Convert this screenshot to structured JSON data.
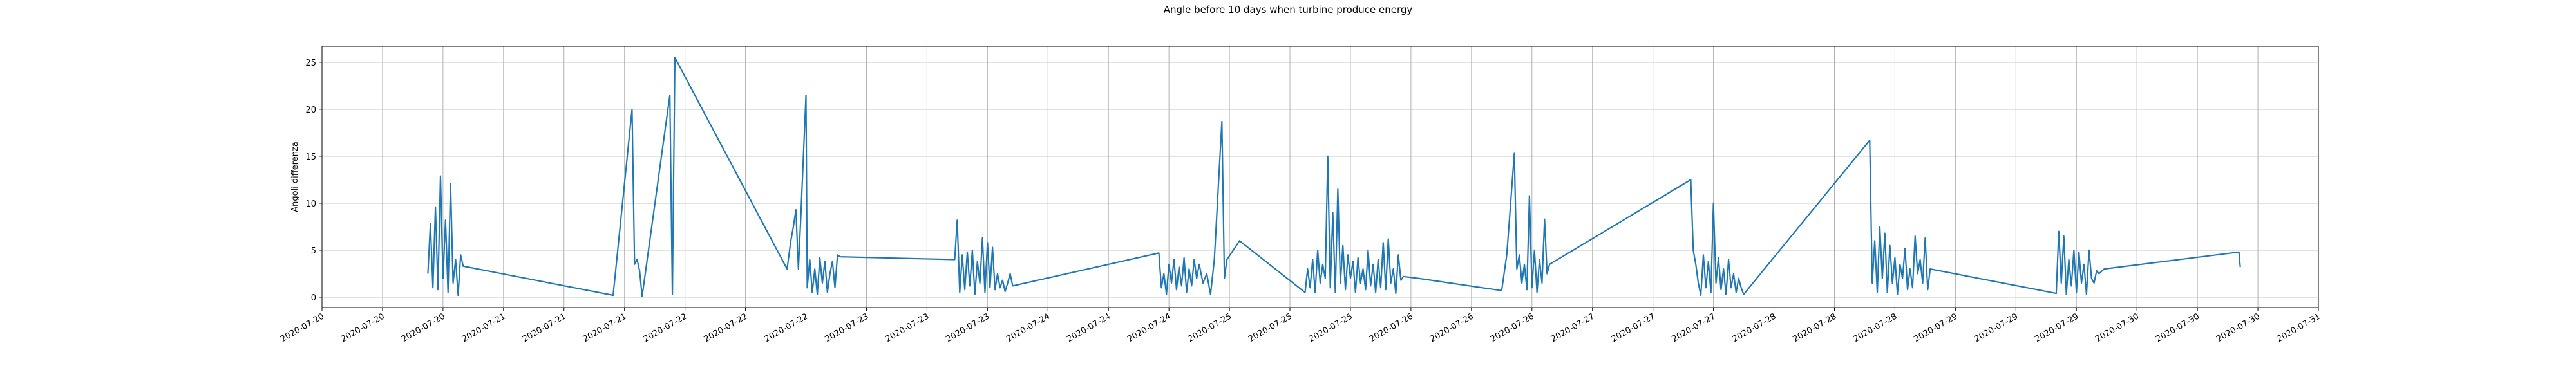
{
  "chart_data": {
    "type": "line",
    "title": "Angle before 10 days when turbine produce energy",
    "y_label": "Angoli differenza",
    "color": "#1f77b4",
    "grid": true,
    "x": [
      "2020-07-20 14:00",
      "2020-07-20 14:20",
      "2020-07-20 14:40",
      "2020-07-20 15:00",
      "2020-07-20 15:20",
      "2020-07-20 15:40",
      "2020-07-20 16:00",
      "2020-07-20 16:20",
      "2020-07-20 16:40",
      "2020-07-20 17:00",
      "2020-07-20 17:20",
      "2020-07-20 17:40",
      "2020-07-20 18:00",
      "2020-07-20 18:20",
      "2020-07-20 18:40",
      "2020-07-21 14:30",
      "2020-07-21 17:00",
      "2020-07-21 17:20",
      "2020-07-21 17:40",
      "2020-07-21 18:00",
      "2020-07-21 18:20",
      "2020-07-21 22:00",
      "2020-07-21 22:20",
      "2020-07-21 22:40",
      "2020-07-22 13:30",
      "2020-07-22 14:00",
      "2020-07-22 14:20",
      "2020-07-22 14:40",
      "2020-07-22 15:00",
      "2020-07-22 15:20",
      "2020-07-22 16:00",
      "2020-07-22 16:10",
      "2020-07-22 16:30",
      "2020-07-22 16:50",
      "2020-07-22 17:10",
      "2020-07-22 17:30",
      "2020-07-22 17:50",
      "2020-07-22 18:10",
      "2020-07-22 18:30",
      "2020-07-22 18:50",
      "2020-07-22 19:10",
      "2020-07-22 19:30",
      "2020-07-22 19:50",
      "2020-07-22 20:10",
      "2020-07-22 20:30",
      "2020-07-23 11:40",
      "2020-07-23 12:00",
      "2020-07-23 12:20",
      "2020-07-23 12:40",
      "2020-07-23 13:00",
      "2020-07-23 13:20",
      "2020-07-23 13:40",
      "2020-07-23 14:00",
      "2020-07-23 14:20",
      "2020-07-23 14:40",
      "2020-07-23 15:00",
      "2020-07-23 15:20",
      "2020-07-23 15:40",
      "2020-07-23 16:00",
      "2020-07-23 16:20",
      "2020-07-23 16:40",
      "2020-07-23 17:00",
      "2020-07-23 17:20",
      "2020-07-23 17:40",
      "2020-07-23 18:00",
      "2020-07-23 18:20",
      "2020-07-23 18:40",
      "2020-07-23 19:00",
      "2020-07-23 19:20",
      "2020-07-24 14:40",
      "2020-07-24 15:00",
      "2020-07-24 15:20",
      "2020-07-24 15:40",
      "2020-07-24 16:00",
      "2020-07-24 16:20",
      "2020-07-24 16:40",
      "2020-07-24 17:00",
      "2020-07-24 17:20",
      "2020-07-24 17:40",
      "2020-07-24 18:00",
      "2020-07-24 18:20",
      "2020-07-24 18:40",
      "2020-07-24 19:00",
      "2020-07-24 19:20",
      "2020-07-24 19:40",
      "2020-07-24 20:00",
      "2020-07-24 20:30",
      "2020-07-24 21:00",
      "2020-07-24 21:30",
      "2020-07-24 22:00",
      "2020-07-24 23:00",
      "2020-07-24 23:20",
      "2020-07-24 23:40",
      "2020-07-25 01:20",
      "2020-07-25 10:00",
      "2020-07-25 10:20",
      "2020-07-25 10:40",
      "2020-07-25 11:00",
      "2020-07-25 11:20",
      "2020-07-25 11:40",
      "2020-07-25 12:00",
      "2020-07-25 12:20",
      "2020-07-25 12:40",
      "2020-07-25 13:00",
      "2020-07-25 13:20",
      "2020-07-25 13:40",
      "2020-07-25 14:00",
      "2020-07-25 14:20",
      "2020-07-25 14:40",
      "2020-07-25 15:00",
      "2020-07-25 15:20",
      "2020-07-25 15:40",
      "2020-07-25 16:00",
      "2020-07-25 16:20",
      "2020-07-25 16:40",
      "2020-07-25 17:00",
      "2020-07-25 17:20",
      "2020-07-25 17:40",
      "2020-07-25 18:00",
      "2020-07-25 18:20",
      "2020-07-25 18:40",
      "2020-07-25 19:00",
      "2020-07-25 19:20",
      "2020-07-25 19:40",
      "2020-07-25 20:00",
      "2020-07-25 20:20",
      "2020-07-25 20:40",
      "2020-07-25 21:00",
      "2020-07-25 21:20",
      "2020-07-25 21:40",
      "2020-07-25 22:00",
      "2020-07-25 22:20",
      "2020-07-25 22:40",
      "2020-07-25 23:00",
      "2020-07-26 01:00",
      "2020-07-26 12:00",
      "2020-07-26 12:40",
      "2020-07-26 13:00",
      "2020-07-26 13:40",
      "2020-07-26 14:00",
      "2020-07-26 14:20",
      "2020-07-26 14:40",
      "2020-07-26 15:00",
      "2020-07-26 15:20",
      "2020-07-26 15:40",
      "2020-07-26 16:00",
      "2020-07-26 16:20",
      "2020-07-26 16:40",
      "2020-07-26 17:00",
      "2020-07-26 17:20",
      "2020-07-26 17:40",
      "2020-07-26 18:00",
      "2020-07-26 18:20",
      "2020-07-27 13:00",
      "2020-07-27 13:20",
      "2020-07-27 13:40",
      "2020-07-27 14:00",
      "2020-07-27 14:20",
      "2020-07-27 14:40",
      "2020-07-27 15:00",
      "2020-07-27 15:20",
      "2020-07-27 15:40",
      "2020-07-27 16:00",
      "2020-07-27 16:20",
      "2020-07-27 16:40",
      "2020-07-27 17:00",
      "2020-07-27 17:20",
      "2020-07-27 17:40",
      "2020-07-27 18:00",
      "2020-07-27 18:20",
      "2020-07-27 18:40",
      "2020-07-27 19:00",
      "2020-07-27 19:20",
      "2020-07-27 19:40",
      "2020-07-27 20:00",
      "2020-07-28 12:40",
      "2020-07-28 13:00",
      "2020-07-28 13:20",
      "2020-07-28 13:40",
      "2020-07-28 14:00",
      "2020-07-28 14:20",
      "2020-07-28 14:40",
      "2020-07-28 15:00",
      "2020-07-28 15:20",
      "2020-07-28 15:40",
      "2020-07-28 16:00",
      "2020-07-28 16:20",
      "2020-07-28 16:40",
      "2020-07-28 17:00",
      "2020-07-28 17:20",
      "2020-07-28 17:40",
      "2020-07-28 18:00",
      "2020-07-28 18:20",
      "2020-07-28 18:40",
      "2020-07-28 19:00",
      "2020-07-28 19:20",
      "2020-07-28 19:40",
      "2020-07-28 20:00",
      "2020-07-28 20:20",
      "2020-07-28 20:40",
      "2020-07-29 13:20",
      "2020-07-29 13:40",
      "2020-07-29 14:00",
      "2020-07-29 14:20",
      "2020-07-29 14:40",
      "2020-07-29 15:00",
      "2020-07-29 15:20",
      "2020-07-29 15:40",
      "2020-07-29 16:00",
      "2020-07-29 16:20",
      "2020-07-29 16:40",
      "2020-07-29 17:00",
      "2020-07-29 17:20",
      "2020-07-29 17:40",
      "2020-07-29 18:00",
      "2020-07-29 18:20",
      "2020-07-29 18:40",
      "2020-07-29 19:00",
      "2020-07-29 19:40",
      "2020-07-30 13:30",
      "2020-07-30 13:40"
    ],
    "values": [
      2.5,
      7.8,
      1,
      9.6,
      0.8,
      12.9,
      2,
      8.2,
      0.5,
      12.1,
      1.5,
      4,
      0.2,
      4.5,
      3.3,
      0.2,
      20,
      3.5,
      4,
      2.8,
      0.1,
      21.5,
      0.3,
      25.5,
      3,
      6,
      7.5,
      9.3,
      3,
      8.8,
      21.5,
      1,
      4,
      0.5,
      3,
      0.3,
      4.2,
      1.5,
      3.8,
      0.5,
      2.5,
      3.8,
      1,
      4.5,
      4.3,
      4,
      8.2,
      0.5,
      4.5,
      0.8,
      4.8,
      1.2,
      5,
      0.3,
      3.8,
      1.5,
      6.3,
      0.5,
      5.8,
      1,
      5.3,
      0.8,
      2.5,
      1,
      1.8,
      0.6,
      1.5,
      2.5,
      1.2,
      4.7,
      1,
      2.5,
      0.3,
      3.5,
      1.5,
      4,
      0.8,
      3.2,
      1.2,
      4.2,
      0.5,
      3,
      1.2,
      4,
      2,
      3.5,
      1.5,
      2.5,
      0.3,
      4,
      18.7,
      2,
      4,
      6,
      0.5,
      3,
      1,
      4,
      0.5,
      5,
      1.5,
      3.5,
      2,
      15,
      1,
      9,
      0.5,
      11.5,
      1.5,
      5.5,
      0.8,
      4.5,
      2,
      3.8,
      0.5,
      4.2,
      1.5,
      3,
      0.8,
      5,
      1.2,
      3.5,
      0.5,
      4,
      1,
      5.8,
      0.8,
      6.2,
      1.5,
      3,
      0.4,
      4.5,
      1.8,
      2.2,
      2,
      0.7,
      4.5,
      8,
      15.3,
      3,
      4.5,
      1.5,
      3.5,
      0.8,
      10.8,
      1,
      5,
      0.5,
      4,
      1.5,
      8.3,
      2.5,
      3.5,
      12.5,
      5,
      3.5,
      1.5,
      0.2,
      4.5,
      1,
      3.8,
      0.5,
      10,
      1.5,
      4.2,
      0.8,
      3,
      0.3,
      4,
      1,
      2.5,
      0.5,
      2,
      1,
      0.3,
      16.7,
      1.5,
      6,
      0.5,
      7.5,
      2,
      6.8,
      0.5,
      5.5,
      1.5,
      4.2,
      0.3,
      3.5,
      2,
      5.2,
      0.8,
      3,
      1,
      6.5,
      2.5,
      4,
      1.5,
      6.3,
      0.8,
      3,
      0.4,
      7,
      1.5,
      6.5,
      0.3,
      4,
      1.2,
      5,
      0.5,
      4.8,
      1.5,
      3.5,
      0.3,
      5,
      2,
      1.5,
      2.8,
      2.5,
      3,
      4.8,
      3.2
    ],
    "xlim": [
      "2020-07-20 00:00",
      "2020-07-31 00:00"
    ],
    "xticks": [
      {
        "value": "2020-07-20 00:00",
        "label": "2020-07-20"
      },
      {
        "value": "2020-07-20 08:00",
        "label": "2020-07-20"
      },
      {
        "value": "2020-07-20 16:00",
        "label": "2020-07-20"
      },
      {
        "value": "2020-07-21 00:00",
        "label": "2020-07-21"
      },
      {
        "value": "2020-07-21 08:00",
        "label": "2020-07-21"
      },
      {
        "value": "2020-07-21 16:00",
        "label": "2020-07-21"
      },
      {
        "value": "2020-07-22 00:00",
        "label": "2020-07-22"
      },
      {
        "value": "2020-07-22 08:00",
        "label": "2020-07-22"
      },
      {
        "value": "2020-07-22 16:00",
        "label": "2020-07-22"
      },
      {
        "value": "2020-07-23 00:00",
        "label": "2020-07-23"
      },
      {
        "value": "2020-07-23 08:00",
        "label": "2020-07-23"
      },
      {
        "value": "2020-07-23 16:00",
        "label": "2020-07-23"
      },
      {
        "value": "2020-07-24 00:00",
        "label": "2020-07-24"
      },
      {
        "value": "2020-07-24 08:00",
        "label": "2020-07-24"
      },
      {
        "value": "2020-07-24 16:00",
        "label": "2020-07-24"
      },
      {
        "value": "2020-07-25 00:00",
        "label": "2020-07-25"
      },
      {
        "value": "2020-07-25 08:00",
        "label": "2020-07-25"
      },
      {
        "value": "2020-07-25 16:00",
        "label": "2020-07-25"
      },
      {
        "value": "2020-07-26 00:00",
        "label": "2020-07-26"
      },
      {
        "value": "2020-07-26 08:00",
        "label": "2020-07-26"
      },
      {
        "value": "2020-07-26 16:00",
        "label": "2020-07-26"
      },
      {
        "value": "2020-07-27 00:00",
        "label": "2020-07-27"
      },
      {
        "value": "2020-07-27 08:00",
        "label": "2020-07-27"
      },
      {
        "value": "2020-07-27 16:00",
        "label": "2020-07-27"
      },
      {
        "value": "2020-07-28 00:00",
        "label": "2020-07-28"
      },
      {
        "value": "2020-07-28 08:00",
        "label": "2020-07-28"
      },
      {
        "value": "2020-07-28 16:00",
        "label": "2020-07-28"
      },
      {
        "value": "2020-07-29 00:00",
        "label": "2020-07-29"
      },
      {
        "value": "2020-07-29 08:00",
        "label": "2020-07-29"
      },
      {
        "value": "2020-07-29 16:00",
        "label": "2020-07-29"
      },
      {
        "value": "2020-07-30 00:00",
        "label": "2020-07-30"
      },
      {
        "value": "2020-07-30 08:00",
        "label": "2020-07-30"
      },
      {
        "value": "2020-07-30 16:00",
        "label": "2020-07-30"
      },
      {
        "value": "2020-07-31 00:00",
        "label": "2020-07-31"
      }
    ],
    "ylim": [
      -1.1,
      26.7
    ],
    "yticks": [
      0,
      5,
      10,
      15,
      20,
      25
    ]
  }
}
